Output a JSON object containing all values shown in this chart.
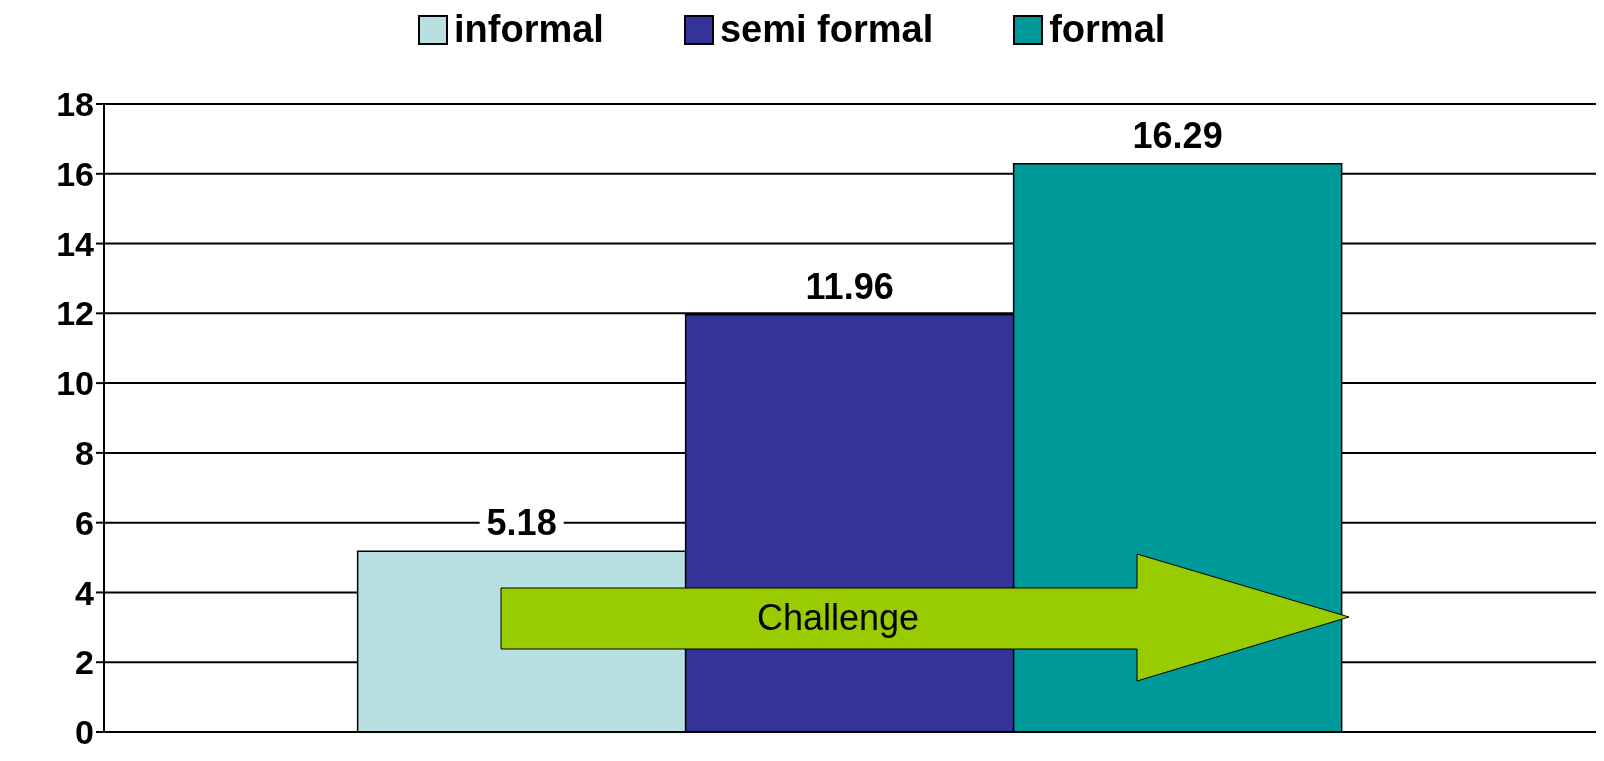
{
  "chart_data": {
    "type": "bar",
    "categories": [
      null
    ],
    "series": [
      {
        "name": "informal",
        "color": "#b8e0e3",
        "values": [
          5.18
        ]
      },
      {
        "name": "semi formal",
        "color": "#333399",
        "values": [
          11.96
        ]
      },
      {
        "name": "formal",
        "color": "#009999",
        "values": [
          16.29
        ]
      }
    ],
    "ylim": [
      0,
      18
    ],
    "yticks": [
      0,
      2,
      4,
      6,
      8,
      10,
      12,
      14,
      16,
      18
    ],
    "grid": "y",
    "legend": "top",
    "data_labels": true,
    "annotations": [
      "Challenge"
    ]
  }
}
